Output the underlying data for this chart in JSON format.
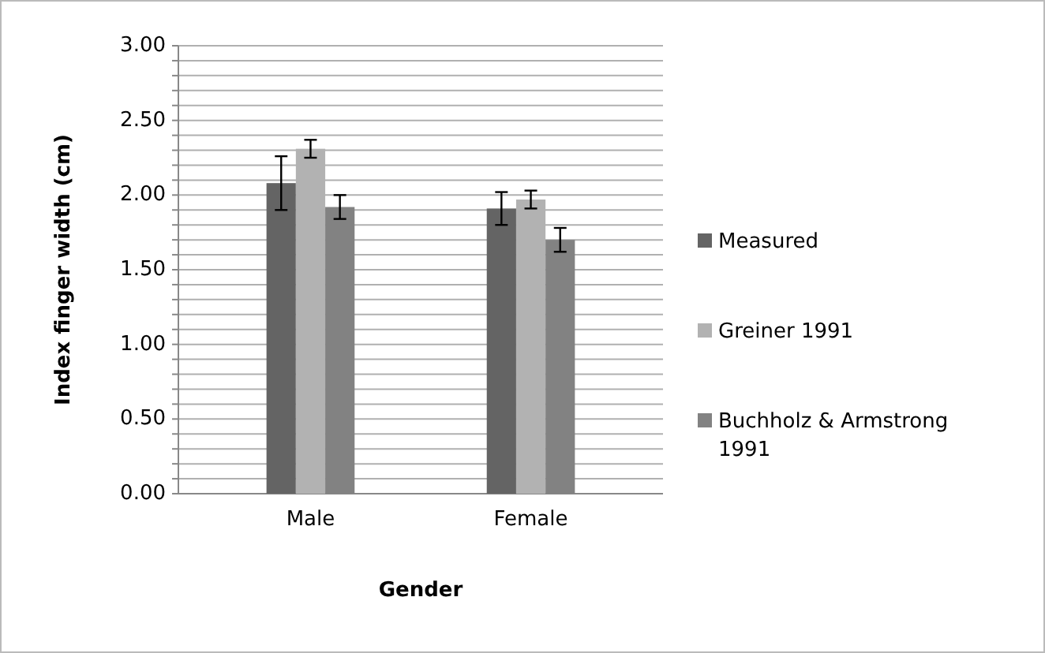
{
  "chart_data": {
    "type": "bar",
    "xlabel": "Gender",
    "ylabel": "Index finger width (cm)",
    "categories": [
      "Male",
      "Female"
    ],
    "series": [
      {
        "name": "Measured",
        "color": "#646464",
        "values": [
          2.08,
          1.91
        ],
        "errors": [
          0.18,
          0.11
        ]
      },
      {
        "name": "Greiner 1991",
        "color": "#b2b2b2",
        "values": [
          2.31,
          1.97
        ],
        "errors": [
          0.06,
          0.06
        ]
      },
      {
        "name": "Buchholz & Armstrong 1991",
        "color": "#828282",
        "values": [
          1.92,
          1.7
        ],
        "errors": [
          0.08,
          0.08
        ]
      }
    ],
    "ylim": [
      0,
      3
    ],
    "yticks": [
      {
        "value": 0,
        "label": "0.00"
      },
      {
        "value": 0.1,
        "label": null
      },
      {
        "value": 0.2,
        "label": null
      },
      {
        "value": 0.3,
        "label": null
      },
      {
        "value": 0.4,
        "label": null
      },
      {
        "value": 0.5,
        "label": "0.50"
      },
      {
        "value": 0.6,
        "label": null
      },
      {
        "value": 0.7,
        "label": null
      },
      {
        "value": 0.8,
        "label": null
      },
      {
        "value": 0.9,
        "label": null
      },
      {
        "value": 1,
        "label": "1.00"
      },
      {
        "value": 1.1,
        "label": null
      },
      {
        "value": 1.2,
        "label": null
      },
      {
        "value": 1.3,
        "label": null
      },
      {
        "value": 1.4,
        "label": null
      },
      {
        "value": 1.5,
        "label": "1.50"
      },
      {
        "value": 1.6,
        "label": null
      },
      {
        "value": 1.7,
        "label": null
      },
      {
        "value": 1.8,
        "label": null
      },
      {
        "value": 1.9,
        "label": null
      },
      {
        "value": 2,
        "label": "2.00"
      },
      {
        "value": 2.1,
        "label": null
      },
      {
        "value": 2.2,
        "label": null
      },
      {
        "value": 2.3,
        "label": null
      },
      {
        "value": 2.4,
        "label": null
      },
      {
        "value": 2.5,
        "label": "2.50"
      },
      {
        "value": 2.6,
        "label": null
      },
      {
        "value": 2.7,
        "label": null
      },
      {
        "value": 2.8,
        "label": null
      },
      {
        "value": 2.9,
        "label": null
      },
      {
        "value": 3,
        "label": "3.00"
      }
    ],
    "grid": "y",
    "legend": "right"
  }
}
